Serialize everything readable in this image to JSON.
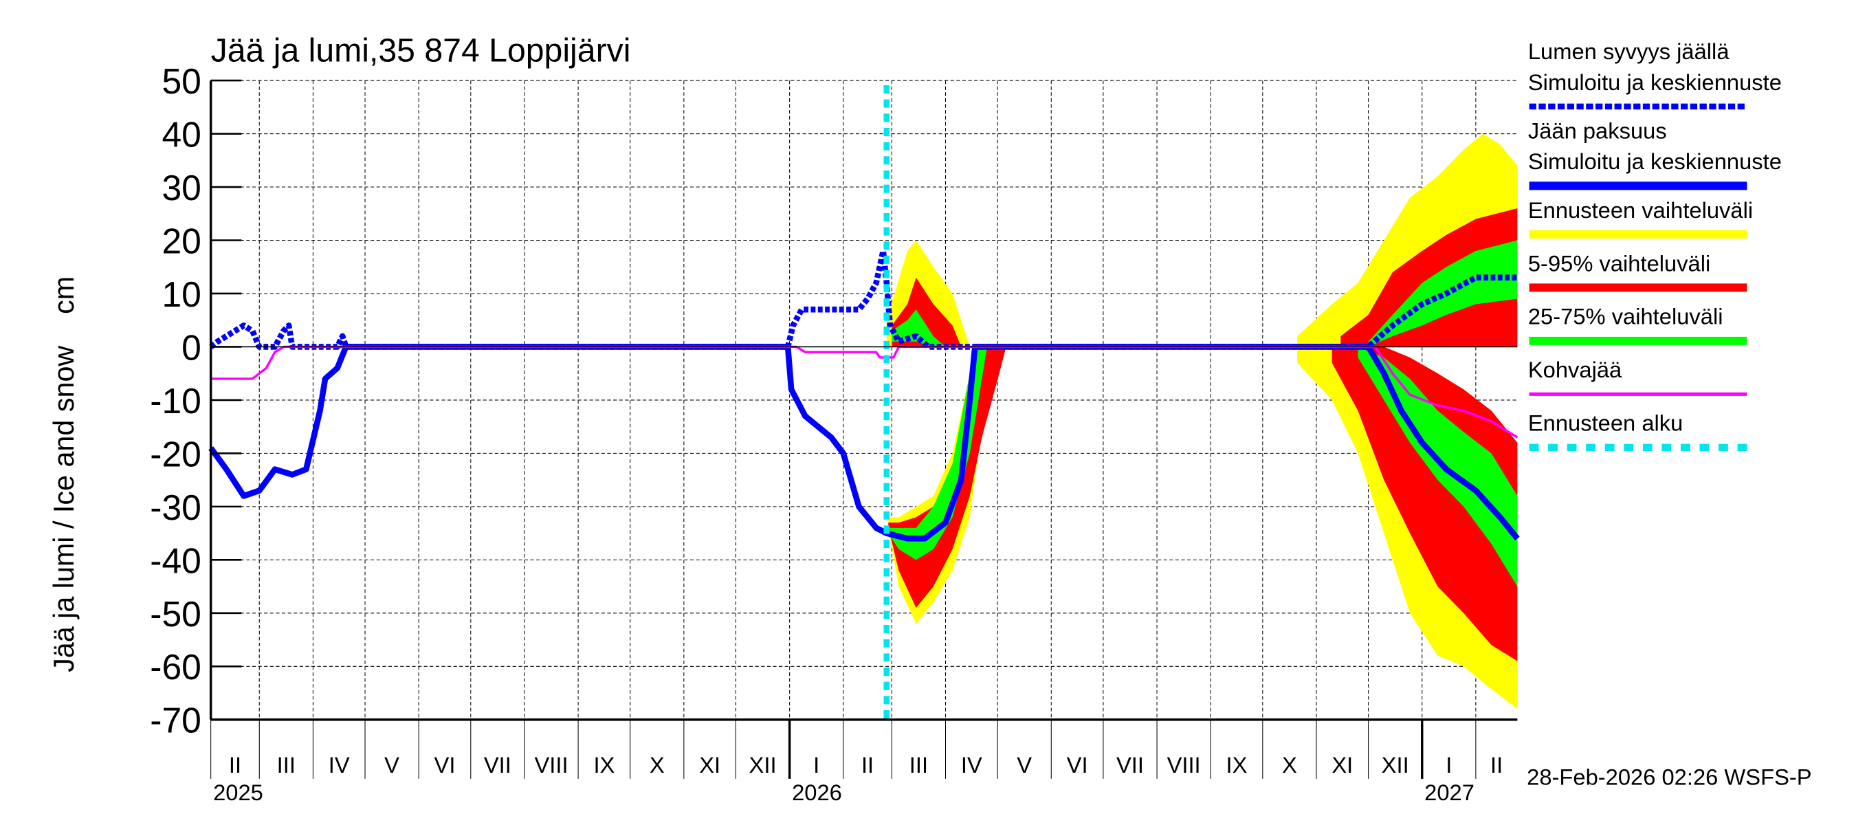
{
  "chart_data": {
    "type": "area",
    "title": "Jää ja lumi,35 874 Loppijärvi",
    "ylabel": "Jää ja lumi / Ice and snow    cm",
    "ylim": [
      -70,
      50
    ],
    "yticks": [
      "50",
      "40",
      "30",
      "20",
      "10",
      "0",
      "-10",
      "-20",
      "-30",
      "-40",
      "-50",
      "-60",
      "-70"
    ],
    "xlim": [
      "2025-02-01",
      "2027-02-25"
    ],
    "grid": true,
    "legend_placement": "right",
    "month_labels": [
      {
        "label": "II",
        "date": "2025-02-01"
      },
      {
        "label": "III",
        "date": "2025-03-01"
      },
      {
        "label": "IV",
        "date": "2025-04-01"
      },
      {
        "label": "V",
        "date": "2025-05-01"
      },
      {
        "label": "VI",
        "date": "2025-06-01"
      },
      {
        "label": "VII",
        "date": "2025-07-01"
      },
      {
        "label": "VIII",
        "date": "2025-08-01"
      },
      {
        "label": "IX",
        "date": "2025-09-01"
      },
      {
        "label": "X",
        "date": "2025-10-01"
      },
      {
        "label": "XI",
        "date": "2025-11-01"
      },
      {
        "label": "XII",
        "date": "2025-12-01"
      },
      {
        "label": "I",
        "date": "2026-01-01"
      },
      {
        "label": "II",
        "date": "2026-02-01"
      },
      {
        "label": "III",
        "date": "2026-03-01"
      },
      {
        "label": "IV",
        "date": "2026-04-01"
      },
      {
        "label": "V",
        "date": "2026-05-01"
      },
      {
        "label": "VI",
        "date": "2026-06-01"
      },
      {
        "label": "VII",
        "date": "2026-07-01"
      },
      {
        "label": "VIII",
        "date": "2026-08-01"
      },
      {
        "label": "IX",
        "date": "2026-09-01"
      },
      {
        "label": "X",
        "date": "2026-10-01"
      },
      {
        "label": "XI",
        "date": "2026-11-01"
      },
      {
        "label": "XII",
        "date": "2026-12-01"
      },
      {
        "label": "I",
        "date": "2027-01-01"
      },
      {
        "label": "II",
        "date": "2027-02-01"
      }
    ],
    "year_labels": [
      {
        "label": "2025",
        "date": "2025-02-01"
      },
      {
        "label": "2026",
        "date": "2026-01-01"
      },
      {
        "label": "2027",
        "date": "2027-01-01"
      }
    ],
    "forecast_start": "2026-02-26",
    "colors": {
      "snow": "#0000ff",
      "ice": "#0000ff",
      "range": "#ffff00",
      "p5_95": "#ff0000",
      "p25_75": "#00ff00",
      "kohva": "#ff00ff",
      "forecast_start": "#00e5ee"
    },
    "bands": [
      {
        "series": "range",
        "points": [
          [
            "2026-02-26",
            0,
            5
          ],
          [
            "2026-03-10",
            0,
            18
          ],
          [
            "2026-03-15",
            0,
            20
          ],
          [
            "2026-03-25",
            0,
            15
          ],
          [
            "2026-04-05",
            0,
            10
          ],
          [
            "2026-04-12",
            0,
            3
          ],
          [
            "2026-04-15",
            0,
            0
          ]
        ]
      },
      {
        "series": "range",
        "points": [
          [
            "2026-02-27",
            -34,
            -32
          ],
          [
            "2026-03-05",
            -45,
            -32
          ],
          [
            "2026-03-15",
            -52,
            -30
          ],
          [
            "2026-03-25",
            -48,
            -28
          ],
          [
            "2026-04-05",
            -42,
            -20
          ],
          [
            "2026-04-15",
            -32,
            -5
          ],
          [
            "2026-04-20",
            -20,
            0
          ],
          [
            "2026-04-28",
            -8,
            0
          ],
          [
            "2026-05-03",
            0,
            0
          ]
        ]
      },
      {
        "series": "range",
        "points": [
          [
            "2026-10-21",
            0,
            2
          ],
          [
            "2026-11-10",
            0,
            8
          ],
          [
            "2026-11-25",
            0,
            12
          ],
          [
            "2026-12-10",
            0,
            20
          ],
          [
            "2026-12-25",
            0,
            28
          ],
          [
            "2027-01-10",
            0,
            32
          ],
          [
            "2027-01-25",
            0,
            37
          ],
          [
            "2027-02-05",
            0,
            40
          ],
          [
            "2027-02-15",
            0,
            38
          ],
          [
            "2027-02-25",
            0,
            34
          ]
        ]
      },
      {
        "series": "range",
        "points": [
          [
            "2026-10-21",
            -3,
            0
          ],
          [
            "2026-11-10",
            -10,
            0
          ],
          [
            "2026-11-25",
            -20,
            0
          ],
          [
            "2026-12-10",
            -35,
            0
          ],
          [
            "2026-12-25",
            -50,
            -2
          ],
          [
            "2027-01-10",
            -58,
            -5
          ],
          [
            "2027-01-25",
            -60,
            -10
          ],
          [
            "2027-02-05",
            -63,
            -15
          ],
          [
            "2027-02-25",
            -68,
            -20
          ]
        ]
      },
      {
        "series": "p5_95",
        "points": [
          [
            "2026-03-01",
            0,
            4
          ],
          [
            "2026-03-10",
            0,
            8
          ],
          [
            "2026-03-15",
            0,
            13
          ],
          [
            "2026-03-25",
            0,
            8
          ],
          [
            "2026-04-05",
            0,
            4
          ],
          [
            "2026-04-10",
            0,
            0
          ]
        ]
      },
      {
        "series": "p5_95",
        "points": [
          [
            "2026-02-27",
            -34,
            -33
          ],
          [
            "2026-03-05",
            -42,
            -33
          ],
          [
            "2026-03-15",
            -49,
            -32
          ],
          [
            "2026-03-25",
            -45,
            -30
          ],
          [
            "2026-04-05",
            -38,
            -22
          ],
          [
            "2026-04-15",
            -28,
            -6
          ],
          [
            "2026-04-22",
            -17,
            0
          ],
          [
            "2026-05-02",
            -5,
            0
          ],
          [
            "2026-05-06",
            0,
            0
          ]
        ]
      },
      {
        "series": "p5_95",
        "points": [
          [
            "2026-11-15",
            0,
            2
          ],
          [
            "2026-12-01",
            0,
            6
          ],
          [
            "2026-12-15",
            0,
            14
          ],
          [
            "2027-01-01",
            0,
            18
          ],
          [
            "2027-01-15",
            0,
            21
          ],
          [
            "2027-02-01",
            0,
            24
          ],
          [
            "2027-02-25",
            0,
            26
          ]
        ]
      },
      {
        "series": "p5_95",
        "points": [
          [
            "2026-11-10",
            -3,
            0
          ],
          [
            "2026-11-25",
            -12,
            0
          ],
          [
            "2026-12-10",
            -25,
            0
          ],
          [
            "2026-12-25",
            -35,
            -2
          ],
          [
            "2027-01-10",
            -45,
            -5
          ],
          [
            "2027-01-25",
            -50,
            -8
          ],
          [
            "2027-02-10",
            -56,
            -12
          ],
          [
            "2027-02-25",
            -59,
            -18
          ]
        ]
      },
      {
        "series": "p25_75",
        "points": [
          [
            "2026-03-01",
            1,
            3
          ],
          [
            "2026-03-10",
            1,
            5
          ],
          [
            "2026-03-15",
            1,
            7
          ],
          [
            "2026-03-25",
            0,
            2
          ],
          [
            "2026-04-01",
            0,
            0
          ]
        ]
      },
      {
        "series": "p25_75",
        "points": [
          [
            "2026-02-27",
            -35,
            -34
          ],
          [
            "2026-03-05",
            -38,
            -34
          ],
          [
            "2026-03-15",
            -40,
            -34
          ],
          [
            "2026-03-25",
            -38,
            -30
          ],
          [
            "2026-04-05",
            -32,
            -22
          ],
          [
            "2026-04-15",
            -20,
            -5
          ],
          [
            "2026-04-20",
            -10,
            0
          ],
          [
            "2026-04-25",
            0,
            0
          ]
        ]
      },
      {
        "series": "p25_75",
        "points": [
          [
            "2026-12-01",
            0,
            1
          ],
          [
            "2026-12-15",
            2,
            6
          ],
          [
            "2027-01-01",
            4,
            12
          ],
          [
            "2027-01-15",
            6,
            15
          ],
          [
            "2027-02-01",
            8,
            18
          ],
          [
            "2027-02-25",
            9,
            20
          ]
        ]
      },
      {
        "series": "p25_75",
        "points": [
          [
            "2026-11-25",
            -2,
            0
          ],
          [
            "2026-12-10",
            -10,
            -2
          ],
          [
            "2026-12-25",
            -18,
            -6
          ],
          [
            "2027-01-10",
            -25,
            -12
          ],
          [
            "2027-01-25",
            -30,
            -16
          ],
          [
            "2027-02-10",
            -37,
            -20
          ],
          [
            "2027-02-25",
            -45,
            -28
          ]
        ]
      }
    ],
    "series": [
      {
        "name": "Lumen syvyys jäällä",
        "key": "snow",
        "style": "dotted",
        "values": [
          [
            "2025-02-01",
            0
          ],
          [
            "2025-02-05",
            1
          ],
          [
            "2025-02-10",
            2
          ],
          [
            "2025-02-15",
            3
          ],
          [
            "2025-02-20",
            4
          ],
          [
            "2025-02-25",
            3
          ],
          [
            "2025-03-01",
            0
          ],
          [
            "2025-03-10",
            0
          ],
          [
            "2025-03-15",
            3
          ],
          [
            "2025-03-18",
            4
          ],
          [
            "2025-03-20",
            0
          ],
          [
            "2025-04-15",
            0
          ],
          [
            "2025-04-18",
            2
          ],
          [
            "2025-04-20",
            0
          ],
          [
            "2025-12-31",
            0
          ],
          [
            "2026-01-03",
            4
          ],
          [
            "2026-01-08",
            7
          ],
          [
            "2026-01-20",
            7
          ],
          [
            "2026-02-01",
            7
          ],
          [
            "2026-02-10",
            7
          ],
          [
            "2026-02-15",
            9
          ],
          [
            "2026-02-20",
            12
          ],
          [
            "2026-02-24",
            18
          ],
          [
            "2026-02-26",
            12
          ],
          [
            "2026-02-28",
            4
          ],
          [
            "2026-03-05",
            1
          ],
          [
            "2026-03-15",
            2
          ],
          [
            "2026-03-22",
            0
          ],
          [
            "2026-12-01",
            0
          ],
          [
            "2026-12-15",
            4
          ],
          [
            "2027-01-01",
            8
          ],
          [
            "2027-01-15",
            10
          ],
          [
            "2027-02-01",
            13
          ],
          [
            "2027-02-25",
            13
          ]
        ]
      },
      {
        "name": "Jään paksuus",
        "key": "ice",
        "style": "solid",
        "values": [
          [
            "2025-02-01",
            -19
          ],
          [
            "2025-02-10",
            -23
          ],
          [
            "2025-02-20",
            -28
          ],
          [
            "2025-03-01",
            -27
          ],
          [
            "2025-03-10",
            -23
          ],
          [
            "2025-03-20",
            -24
          ],
          [
            "2025-03-28",
            -23
          ],
          [
            "2025-04-05",
            -12
          ],
          [
            "2025-04-08",
            -6
          ],
          [
            "2025-04-15",
            -4
          ],
          [
            "2025-04-20",
            0
          ],
          [
            "2025-12-31",
            0
          ],
          [
            "2026-01-02",
            -8
          ],
          [
            "2026-01-10",
            -13
          ],
          [
            "2026-01-25",
            -17
          ],
          [
            "2026-02-01",
            -20
          ],
          [
            "2026-02-10",
            -30
          ],
          [
            "2026-02-20",
            -34
          ],
          [
            "2026-02-26",
            -35
          ],
          [
            "2026-03-10",
            -36
          ],
          [
            "2026-03-20",
            -36
          ],
          [
            "2026-04-01",
            -33
          ],
          [
            "2026-04-10",
            -25
          ],
          [
            "2026-04-15",
            -10
          ],
          [
            "2026-04-18",
            0
          ],
          [
            "2026-12-01",
            0
          ],
          [
            "2026-12-10",
            -5
          ],
          [
            "2026-12-20",
            -12
          ],
          [
            "2027-01-01",
            -18
          ],
          [
            "2027-01-15",
            -23
          ],
          [
            "2027-02-01",
            -27
          ],
          [
            "2027-02-15",
            -32
          ],
          [
            "2027-02-25",
            -36
          ]
        ]
      },
      {
        "name": "Kohvajää",
        "key": "kohva",
        "style": "solid",
        "values": [
          [
            "2025-02-01",
            -6
          ],
          [
            "2025-02-25",
            -6
          ],
          [
            "2025-03-01",
            -5
          ],
          [
            "2025-03-05",
            -4
          ],
          [
            "2025-03-10",
            -1
          ],
          [
            "2025-03-15",
            0
          ],
          [
            "2026-01-05",
            0
          ],
          [
            "2026-01-10",
            -1
          ],
          [
            "2026-02-20",
            -1
          ],
          [
            "2026-02-22",
            -2
          ],
          [
            "2026-03-02",
            -2
          ],
          [
            "2026-03-05",
            0
          ],
          [
            "2026-12-05",
            0
          ],
          [
            "2026-12-15",
            -5
          ],
          [
            "2026-12-25",
            -9
          ],
          [
            "2027-01-10",
            -11
          ],
          [
            "2027-01-25",
            -12
          ],
          [
            "2027-02-10",
            -14
          ],
          [
            "2027-02-25",
            -17
          ]
        ]
      }
    ],
    "legend": [
      {
        "lines": [
          "Lumen syvyys jäällä",
          "Simuloitu ja keskiennuste"
        ],
        "color": "#0000ff",
        "style": "dotted"
      },
      {
        "lines": [
          "Jään paksuus",
          "Simuloitu ja keskiennuste"
        ],
        "color": "#0000ff",
        "style": "solid"
      },
      {
        "lines": [
          "Ennusteen vaihteluväli"
        ],
        "color": "#ffff00",
        "style": "solid"
      },
      {
        "lines": [
          "5-95% vaihteluväli"
        ],
        "color": "#ff0000",
        "style": "solid"
      },
      {
        "lines": [
          "25-75% vaihteluväli"
        ],
        "color": "#00ff00",
        "style": "solid"
      },
      {
        "lines": [
          "Kohvajää"
        ],
        "color": "#ff00ff",
        "style": "thin"
      },
      {
        "lines": [
          "Ennusteen alku"
        ],
        "color": "#00e5ee",
        "style": "dashed"
      }
    ],
    "footer": "28-Feb-2026 02:26 WSFS-P"
  }
}
